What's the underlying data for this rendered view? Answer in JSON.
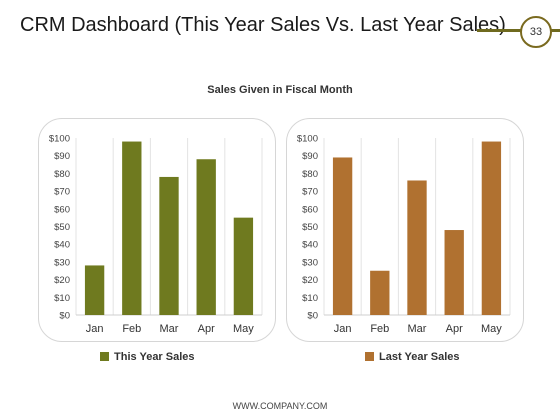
{
  "header": {
    "title": "CRM Dashboard (This Year Sales Vs. Last Year Sales)",
    "page_number": "33"
  },
  "footer": {
    "text": "WWW.COMPANY.COM"
  },
  "colors": {
    "this_year": "#6f7a1f",
    "last_year": "#b07130",
    "accent": "#6f6a1f",
    "grid": "#e3e3e3",
    "tick_text": "#444444"
  },
  "chart_data": {
    "type": "bar",
    "title": "Sales Given in Fiscal Month",
    "categories": [
      "Jan",
      "Feb",
      "Mar",
      "Apr",
      "May"
    ],
    "ylim": [
      0,
      100
    ],
    "yticks": [
      "$0",
      "$10",
      "$20",
      "$30",
      "$40",
      "$50",
      "$60",
      "$70",
      "$80",
      "$90",
      "$100"
    ],
    "grid": "vertical",
    "legend": "bottom",
    "series": [
      {
        "name": "This Year Sales",
        "values": [
          28,
          98,
          78,
          88,
          55
        ]
      },
      {
        "name": "Last Year Sales",
        "values": [
          89,
          25,
          76,
          48,
          98
        ]
      }
    ]
  }
}
